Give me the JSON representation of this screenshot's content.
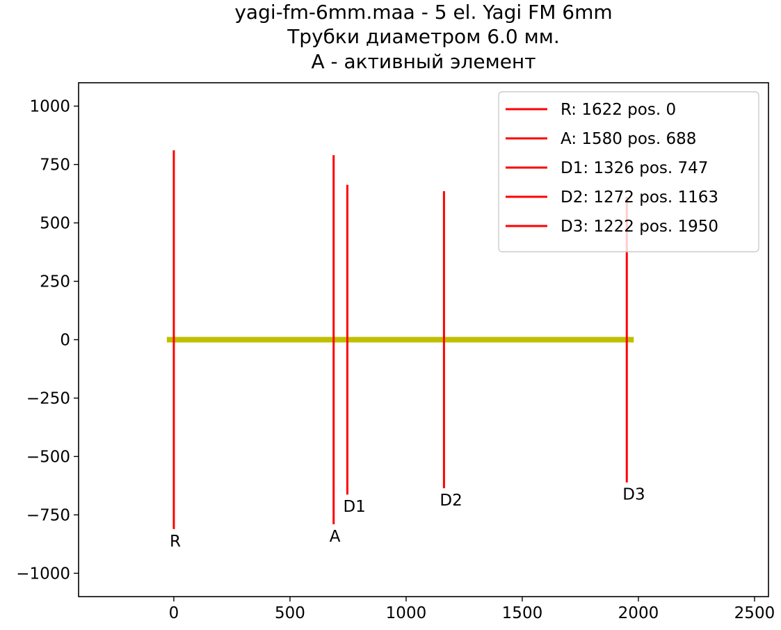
{
  "chart_data": {
    "type": "line",
    "title_lines": [
      "yagi-fm-6mm.maa - 5 el. Yagi FM 6mm",
      "Трубки диаметром 6.0 мм.",
      "A - активный элемент"
    ],
    "xlabel": "",
    "ylabel": "",
    "xlim": [
      -410,
      2560
    ],
    "ylim": [
      -1100,
      1100
    ],
    "xticks": [
      0,
      500,
      1000,
      1500,
      2000,
      2500
    ],
    "yticks": [
      1000,
      750,
      500,
      250,
      0,
      -250,
      -500,
      -750,
      -1000
    ],
    "xtick_labels": [
      "0",
      "500",
      "1000",
      "1500",
      "2000",
      "2500"
    ],
    "ytick_labels": [
      "1000",
      "750",
      "500",
      "250",
      "0",
      "−250",
      "−500",
      "−750",
      "−1000"
    ],
    "grid": false,
    "legend_position": "top-right",
    "boom": {
      "x": [
        -30,
        1980
      ],
      "y": 0,
      "color": "#bfbf00"
    },
    "element_color": "#ff0000",
    "series": [
      {
        "name": "R: 1622 pos. 0",
        "label": "R",
        "position": 0,
        "length": 1622
      },
      {
        "name": "A: 1580 pos. 688",
        "label": "A",
        "position": 688,
        "length": 1580
      },
      {
        "name": "D1: 1326 pos. 747",
        "label": "D1",
        "position": 747,
        "length": 1326
      },
      {
        "name": "D2: 1272 pos. 1163",
        "label": "D2",
        "position": 1163,
        "length": 1272
      },
      {
        "name": "D3: 1222 pos. 1950",
        "label": "D3",
        "position": 1950,
        "length": 1222
      }
    ]
  }
}
